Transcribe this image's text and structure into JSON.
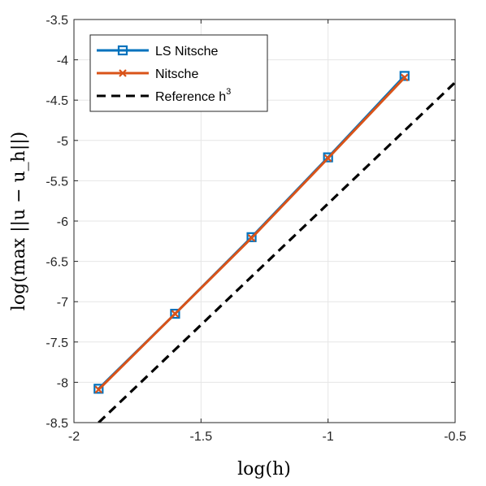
{
  "chart_data": {
    "type": "line",
    "xlabel": "log(h)",
    "ylabel": "log(max ||u − u_h||)",
    "xlim": [
      -2,
      -0.5
    ],
    "ylim": [
      -8.5,
      -3.5
    ],
    "xticks": [
      -2,
      -1.5,
      -1,
      -0.5
    ],
    "yticks": [
      -3.5,
      -4,
      -4.5,
      -5,
      -5.5,
      -6,
      -6.5,
      -7,
      -7.5,
      -8,
      -8.5
    ],
    "xtick_labels": [
      "-2",
      "-1.5",
      "-1",
      "-0.5"
    ],
    "ytick_labels": [
      "-3.5",
      "-4",
      "-4.5",
      "-5",
      "-5.5",
      "-6",
      "-6.5",
      "-7",
      "-7.5",
      "-8",
      "-8.5"
    ],
    "grid": true,
    "legend_position": "top-left",
    "series": [
      {
        "name": "LS Nitsche",
        "color": "#0072BD",
        "marker": "square",
        "line_style": "solid",
        "x": [
          -1.903,
          -1.602,
          -1.301,
          -1.0,
          -0.699
        ],
        "y": [
          -8.08,
          -7.15,
          -6.2,
          -5.21,
          -4.2
        ]
      },
      {
        "name": "Nitsche",
        "color": "#D95319",
        "marker": "x",
        "line_style": "solid",
        "x": [
          -1.903,
          -1.602,
          -1.301,
          -1.0,
          -0.699
        ],
        "y": [
          -8.09,
          -7.15,
          -6.21,
          -5.22,
          -4.22
        ]
      },
      {
        "name": "Reference h",
        "name_superscript": "3",
        "color": "#000000",
        "marker": "none",
        "line_style": "dashed",
        "x": [
          -1.903,
          -0.5
        ],
        "y": [
          -8.5,
          -4.28
        ]
      }
    ]
  }
}
